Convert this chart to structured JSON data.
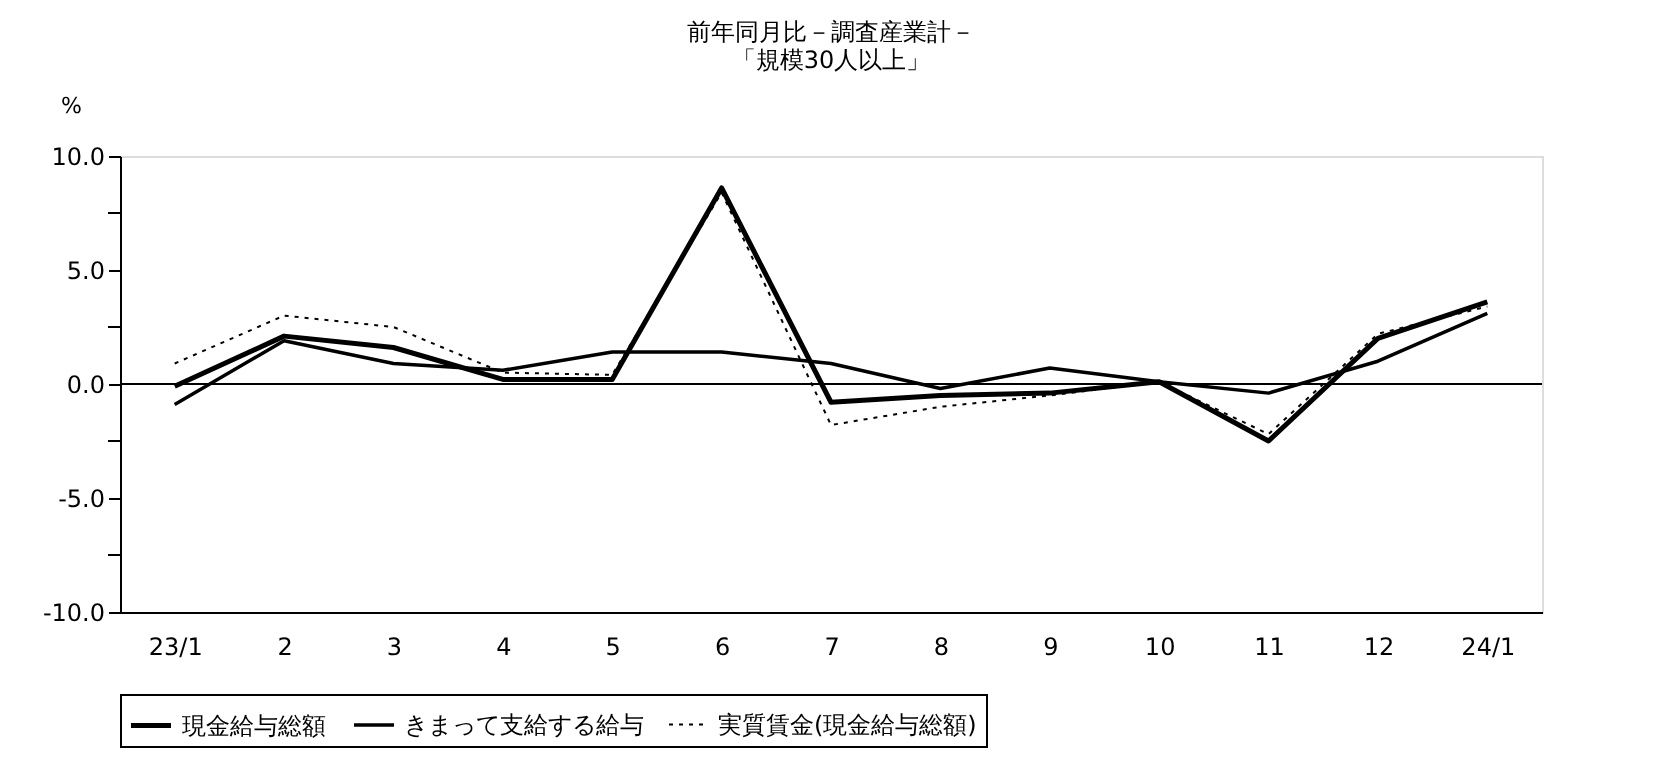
{
  "chart_data": {
    "type": "line",
    "title": [
      "前年同月比－調査産業計－",
      "「規模30人以上」"
    ],
    "ylabel": "%",
    "categories": [
      "23/1",
      "2",
      "3",
      "4",
      "5",
      "6",
      "7",
      "8",
      "9",
      "10",
      "11",
      "12",
      "24/1"
    ],
    "series": [
      {
        "name": "現金給与総額",
        "color": "#000000",
        "line_style": "solid",
        "values": [
          -0.1,
          2.1,
          1.6,
          0.2,
          0.2,
          8.6,
          -0.8,
          -0.5,
          -0.4,
          0.1,
          -2.5,
          2.0,
          3.6
        ]
      },
      {
        "name": "きまって支給する給与",
        "color": "#000000",
        "line_style": "solid",
        "values": [
          -0.9,
          1.9,
          0.9,
          0.6,
          1.4,
          1.4,
          0.9,
          -0.2,
          0.7,
          0.1,
          -0.4,
          1.0,
          3.1
        ]
      },
      {
        "name": "実質賃金(現金給与総額)",
        "color": "#000000",
        "line_style": "dotted",
        "values": [
          0.9,
          3.0,
          2.5,
          0.5,
          0.4,
          8.4,
          -1.8,
          -1.0,
          -0.5,
          0.1,
          -2.2,
          2.2,
          3.4
        ]
      }
    ],
    "ylim": [
      -10,
      10
    ],
    "yticks": [
      {
        "value": -10,
        "label": "-10.0"
      },
      {
        "value": -7.5,
        "label": null
      },
      {
        "value": -5,
        "label": "-5.0"
      },
      {
        "value": -2.5,
        "label": null
      },
      {
        "value": 0,
        "label": "0.0"
      },
      {
        "value": 2.5,
        "label": null
      },
      {
        "value": 5,
        "label": "5.0"
      },
      {
        "value": 7.5,
        "label": null
      },
      {
        "value": 10,
        "label": "10.0"
      }
    ],
    "ref_lines": [
      {
        "axis": "y",
        "value": 0,
        "color": "#000000"
      }
    ],
    "legend": "bottom",
    "grid": false,
    "marker": "none"
  }
}
